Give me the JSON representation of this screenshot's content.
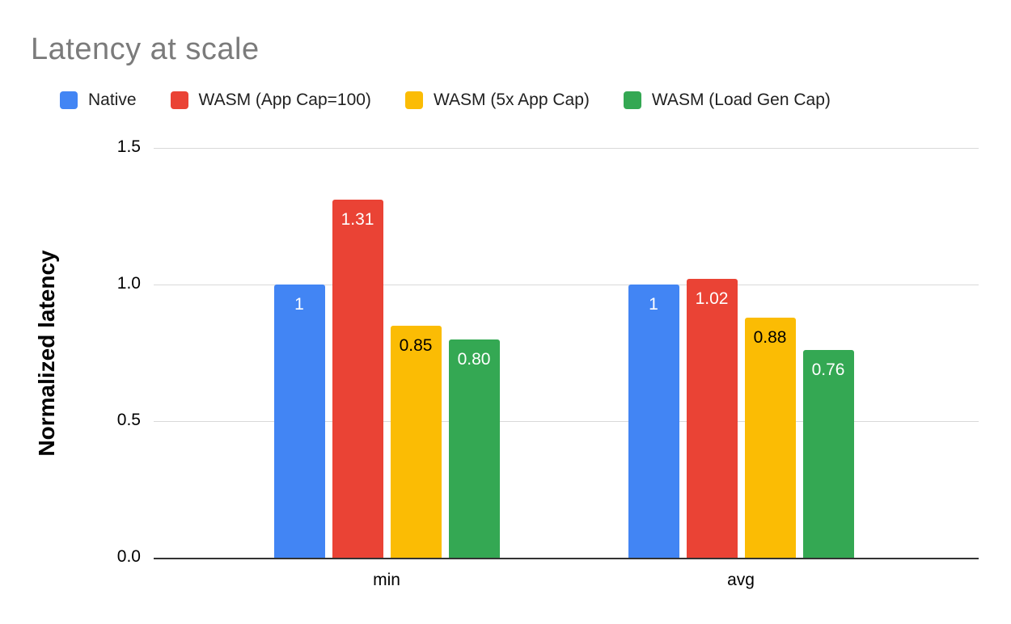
{
  "chart_data": {
    "type": "bar",
    "title": "Latency at scale",
    "ylabel": "Normalized latency",
    "xlabel": "",
    "categories": [
      "min",
      "avg"
    ],
    "series": [
      {
        "name": "Native",
        "color": "#4285f4",
        "label_color": "#ffffff",
        "values": [
          1.0,
          1.0
        ],
        "labels": [
          "1",
          "1"
        ]
      },
      {
        "name": "WASM (App Cap=100)",
        "color": "#ea4335",
        "label_color": "#ffffff",
        "values": [
          1.31,
          1.02
        ],
        "labels": [
          "1.31",
          "1.02"
        ]
      },
      {
        "name": "WASM (5x App Cap)",
        "color": "#fbbc04",
        "label_color": "#000000",
        "values": [
          0.85,
          0.88
        ],
        "labels": [
          "0.85",
          "0.88"
        ]
      },
      {
        "name": "WASM (Load Gen Cap)",
        "color": "#34a853",
        "label_color": "#ffffff",
        "values": [
          0.8,
          0.76
        ],
        "labels": [
          "0.80",
          "0.76"
        ]
      }
    ],
    "ylim": [
      0,
      1.5
    ],
    "yticks": [
      "0.0",
      "0.5",
      "1.0",
      "1.5"
    ],
    "grid": true,
    "legend_position": "top"
  }
}
